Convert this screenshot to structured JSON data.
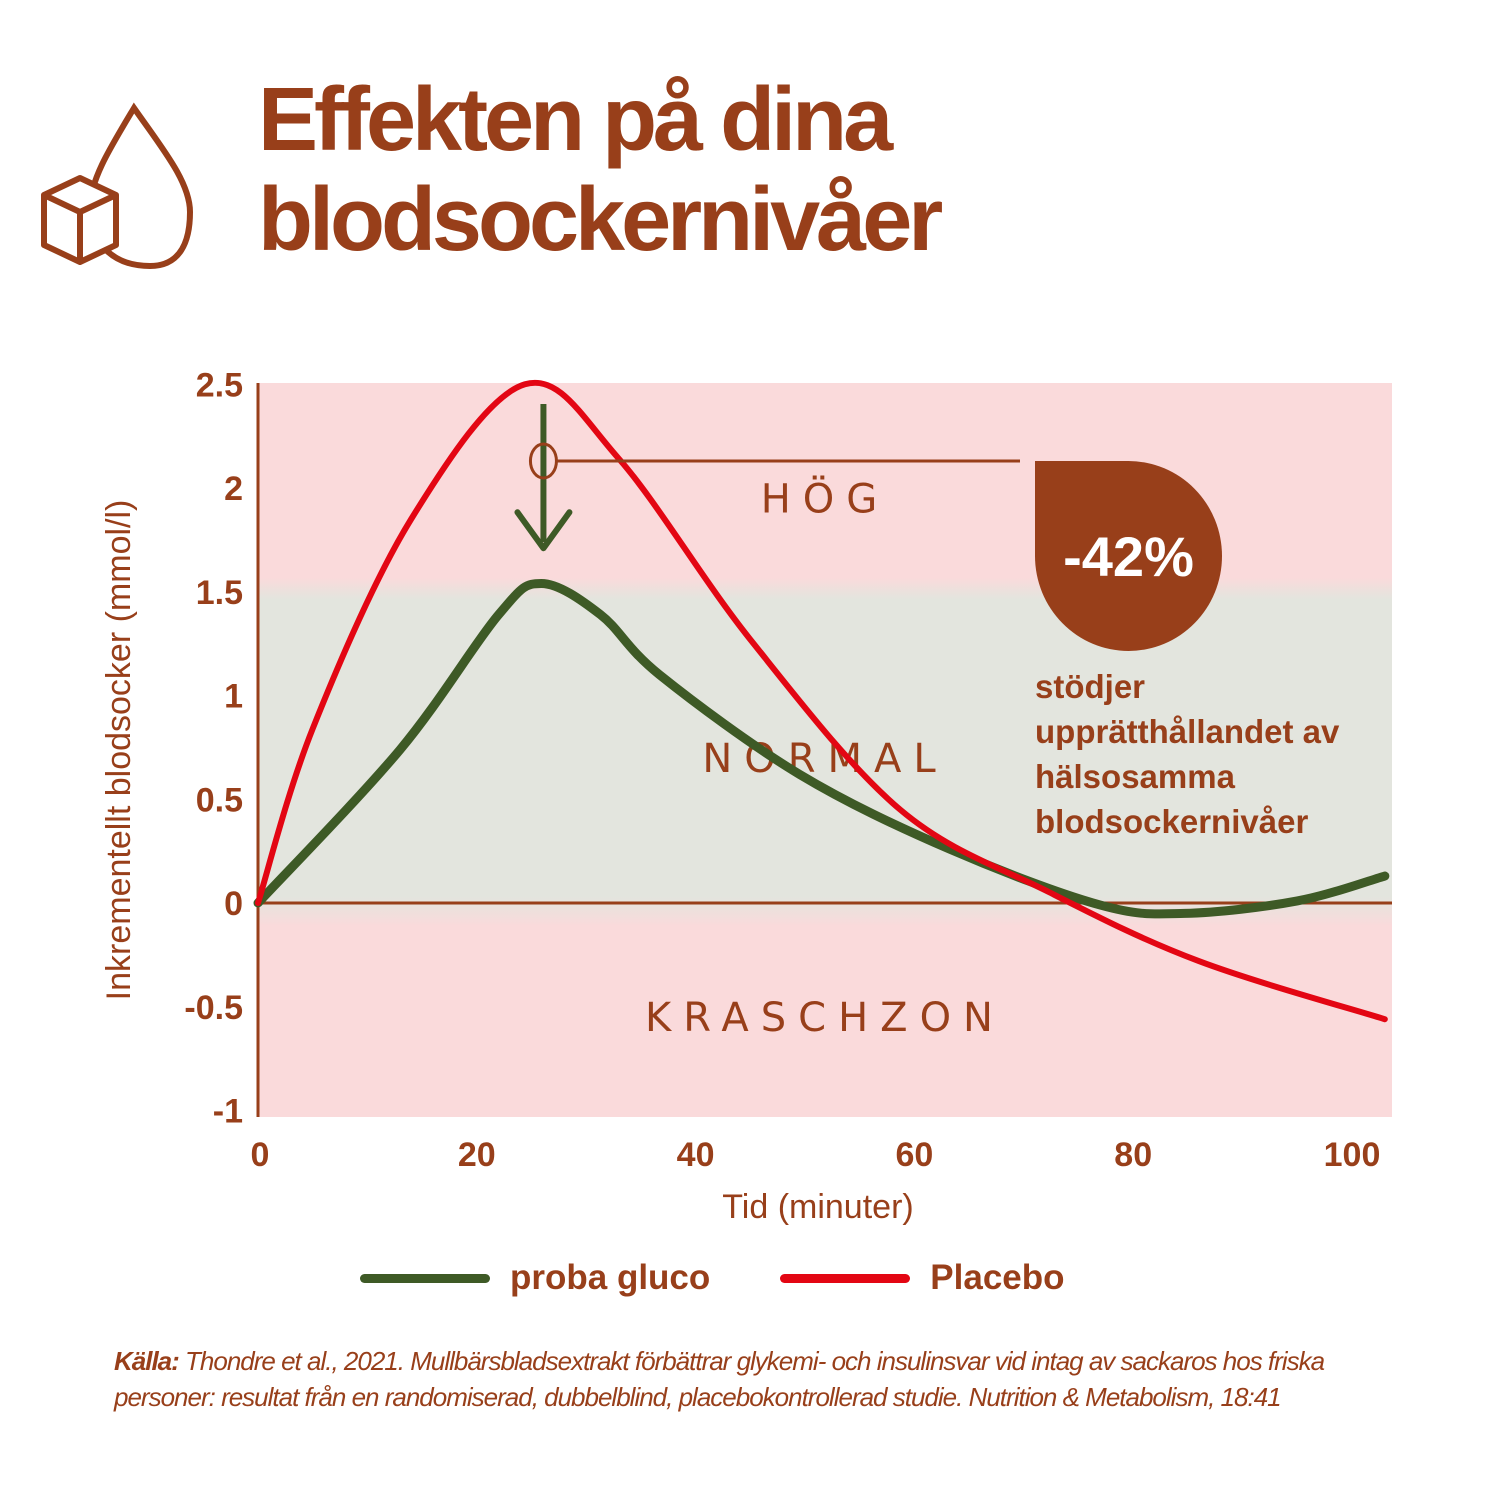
{
  "title": "Effekten på dina blodsockernivåer",
  "colors": {
    "brand": "#983f1a",
    "proba": "#3e5a26",
    "placebo": "#e30613",
    "high_zone": "#fadadb",
    "normal_zone": "#e3e5de"
  },
  "chart_data": {
    "type": "line",
    "xlabel": "Tid (minuter)",
    "ylabel": "Inkrementellt blodsocker (mmol/l)",
    "xlim": [
      0,
      104
    ],
    "ylim": [
      -1,
      2.5
    ],
    "x_ticks": [
      "0",
      "20",
      "40",
      "60",
      "80",
      "100"
    ],
    "y_ticks": [
      "2.5",
      "2",
      "1.5",
      "1",
      "0.5",
      "0",
      "-0.5",
      "-1"
    ],
    "zones": [
      {
        "label": "HÖG",
        "from": 1.5,
        "to": 2.5
      },
      {
        "label": "NORMAL",
        "from": 0,
        "to": 1.5
      },
      {
        "label": "KRASCHZON",
        "from": -1,
        "to": 0
      }
    ],
    "series": [
      {
        "name": "proba gluco",
        "color": "#3e5a26",
        "x": [
          0,
          13,
          22,
          25.9,
          31.3,
          36.7,
          49.5,
          63.2,
          77,
          84.7,
          95,
          103
        ],
        "y": [
          0,
          0.74,
          1.39,
          1.54,
          1.39,
          1.1,
          0.62,
          0.26,
          -0.01,
          -0.05,
          0.01,
          0.13
        ]
      },
      {
        "name": "Placebo",
        "color": "#e30613",
        "x": [
          0,
          5,
          14,
          24.4,
          33,
          45,
          58.7,
          72.4,
          86,
          103
        ],
        "y": [
          0,
          0.84,
          1.85,
          2.5,
          2.14,
          1.27,
          0.45,
          0.05,
          -0.28,
          -0.56
        ]
      }
    ],
    "annotation": {
      "value": "-42%",
      "text": "stödjer upprätthållandet av hälsosamma blodsockernivåer",
      "at_x": 26,
      "from_y": 2.27,
      "to_y": 1.7
    },
    "legend": "bottom"
  },
  "source": {
    "label": "Källa:",
    "text": " Thondre et al., 2021. Mullbärsbladsextrakt förbättrar glykemi- och insulinsvar vid intag av sackaros hos friska personer: resultat från en randomiserad, dubbelblind, placebokontrollerad studie. Nutrition & Metabolism, 18:41"
  }
}
